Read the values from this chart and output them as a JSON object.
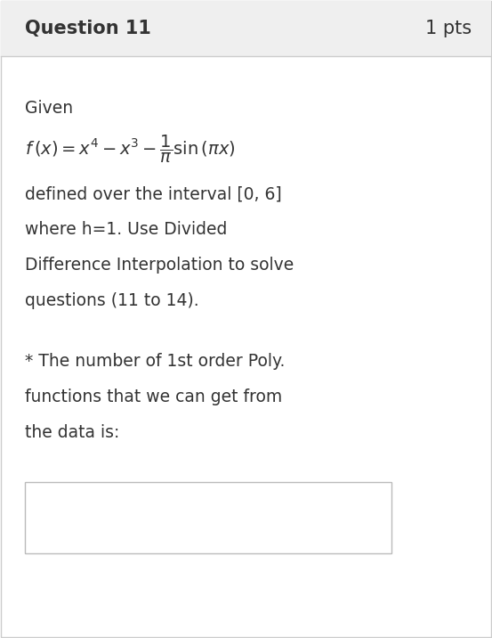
{
  "header_text": "Question 11",
  "pts_text": "1 pts",
  "header_bg": "#efefef",
  "header_border": "#cccccc",
  "body_bg": "#ffffff",
  "text_color": "#333333",
  "given_text": "Given",
  "body_text_1": "defined over the interval [0, 6]",
  "body_text_2": "where h=1. Use Divided",
  "body_text_3": "Difference Interpolation to solve",
  "body_text_4": "questions (11 to 14).",
  "question_text_1": "* The number of 1st order Poly.",
  "question_text_2": "functions that we can get from",
  "question_text_3": "the data is:",
  "box_color": "#ffffff",
  "box_border": "#bbbbbb",
  "font_size_header": 15,
  "font_size_body": 13.5,
  "font_size_formula": 13.5,
  "fig_width": 5.53,
  "fig_height": 7.16,
  "dpi": 100
}
